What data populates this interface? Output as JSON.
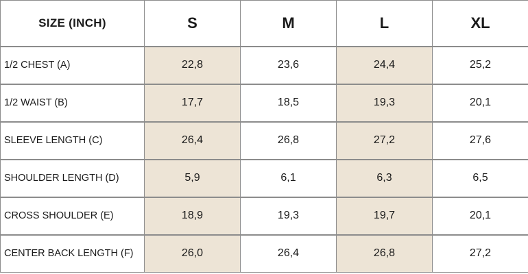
{
  "table": {
    "header_label": "SIZE (INCH)",
    "sizes": [
      "S",
      "M",
      "L",
      "XL"
    ],
    "rows": [
      {
        "label": "1/2 CHEST (A)",
        "values": [
          "22,8",
          "23,6",
          "24,4",
          "25,2"
        ]
      },
      {
        "label": "1/2 WAIST (B)",
        "values": [
          "17,7",
          "18,5",
          "19,3",
          "20,1"
        ]
      },
      {
        "label": "SLEEVE LENGTH (C)",
        "values": [
          "26,4",
          "26,8",
          "27,2",
          "27,6"
        ]
      },
      {
        "label": "SHOULDER LENGTH (D)",
        "values": [
          "5,9",
          "6,1",
          "6,3",
          "6,5"
        ]
      },
      {
        "label": "CROSS SHOULDER (E)",
        "values": [
          "18,9",
          "19,3",
          "19,7",
          "20,1"
        ]
      },
      {
        "label": "CENTER BACK LENGTH (F)",
        "values": [
          "26,0",
          "26,4",
          "26,8",
          "27,2"
        ]
      }
    ]
  },
  "colors": {
    "shaded_column": "#ede4d6",
    "border": "#8c8c8c"
  }
}
